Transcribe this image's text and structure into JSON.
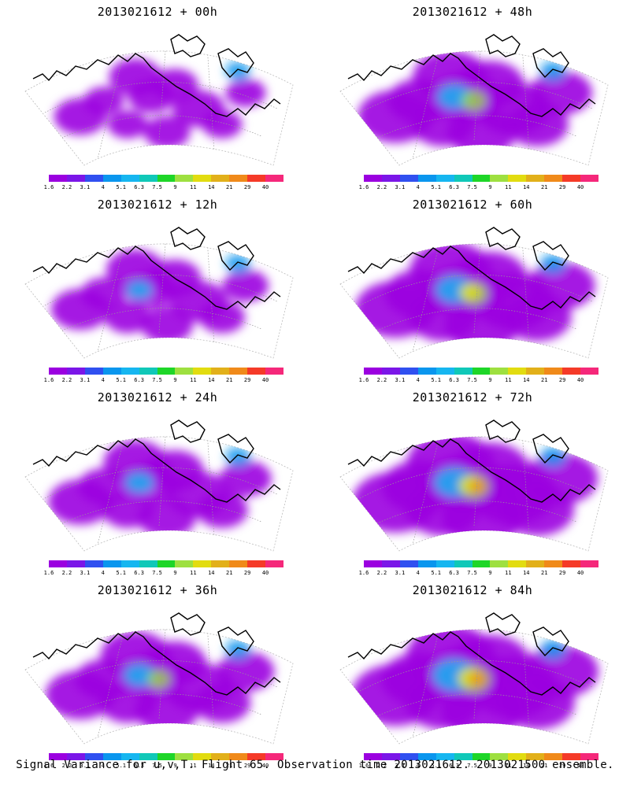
{
  "panels": [
    {
      "title": "2013021612 + 00h",
      "lead": 0
    },
    {
      "title": "2013021612 + 48h",
      "lead": 48
    },
    {
      "title": "2013021612 + 12h",
      "lead": 12
    },
    {
      "title": "2013021612 + 60h",
      "lead": 60
    },
    {
      "title": "2013021612 + 24h",
      "lead": 24
    },
    {
      "title": "2013021612 + 72h",
      "lead": 72
    },
    {
      "title": "2013021612 + 36h",
      "lead": 36
    },
    {
      "title": "2013021612 + 84h",
      "lead": 84
    }
  ],
  "colorbar": {
    "labels": [
      "1.6",
      "2.2",
      "3.1",
      "4",
      "5.1",
      "6.3",
      "7.5",
      "9",
      "11",
      "14",
      "21",
      "29",
      "40"
    ],
    "colors": [
      "#9b00e0",
      "#7b16e8",
      "#3050f0",
      "#0a96ee",
      "#16b6f0",
      "#10c8b8",
      "#1ed628",
      "#9ee040",
      "#e2dc10",
      "#e2b01a",
      "#f08a1a",
      "#f53a28",
      "#f5287a"
    ]
  },
  "footer": "Signal Variance for u,v,T. Flight 65. Observation time 2013021612. 2013021500 ensemble."
}
